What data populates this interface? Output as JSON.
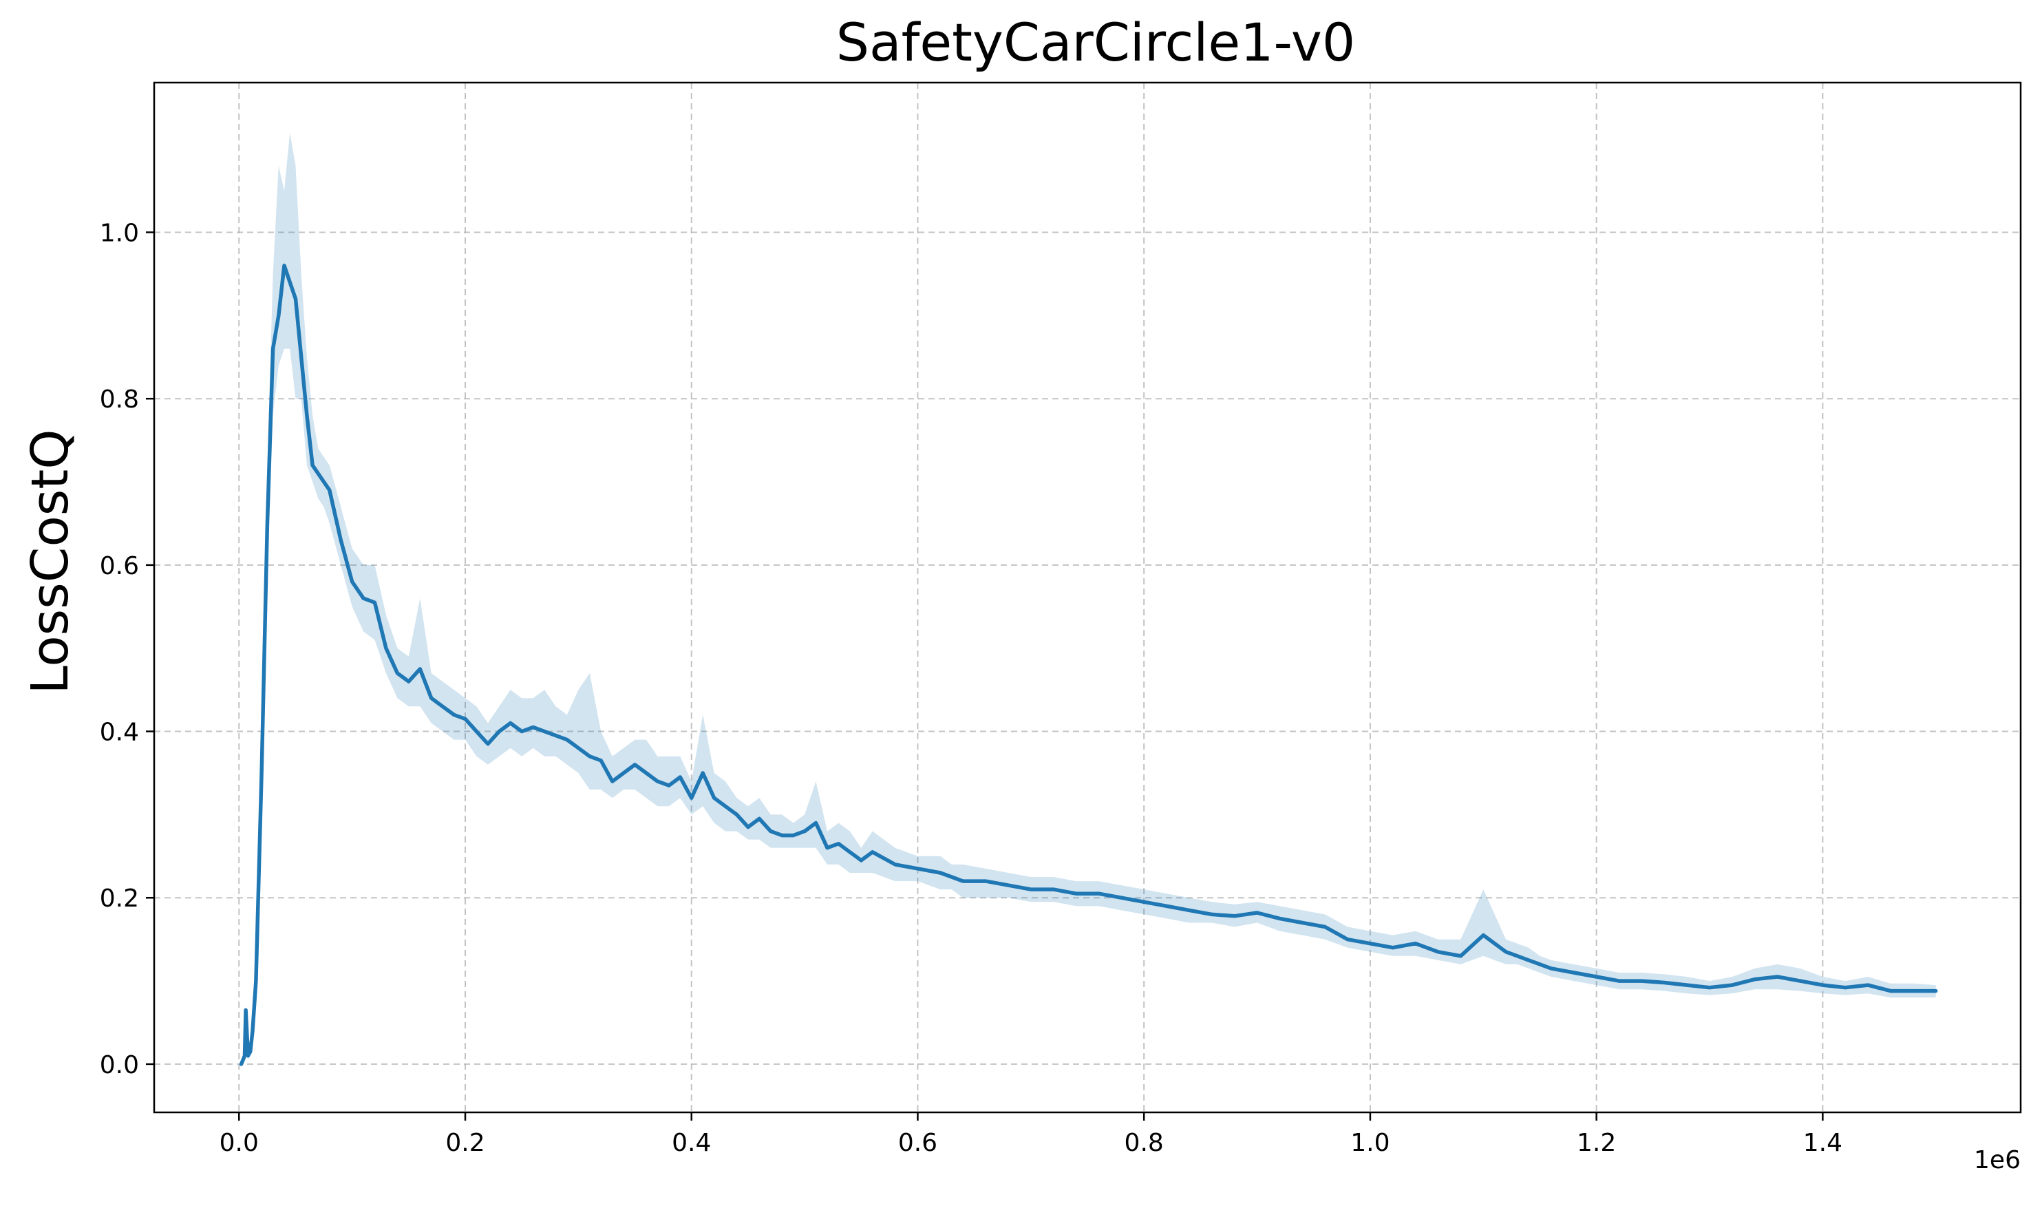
{
  "chart_data": {
    "type": "line",
    "title": "SafetyCarCircle1-v0",
    "xlabel": "",
    "ylabel": "LossCostQ",
    "x_offset_label": "1e6",
    "xlim": [
      -0.075,
      1.575
    ],
    "ylim": [
      -0.058,
      1.18
    ],
    "x_ticks": [
      0.0,
      0.2,
      0.4,
      0.6,
      0.8,
      1.0,
      1.2,
      1.4
    ],
    "x_tick_labels": [
      "0.0",
      "0.2",
      "0.4",
      "0.6",
      "0.8",
      "1.0",
      "1.2",
      "1.4"
    ],
    "y_ticks": [
      0.0,
      0.2,
      0.4,
      0.6,
      0.8,
      1.0
    ],
    "y_tick_labels": [
      "0.0",
      "0.2",
      "0.4",
      "0.6",
      "0.8",
      "1.0"
    ],
    "grid": true,
    "colors": {
      "line": "#1f77b4",
      "band": "#1f77b4",
      "band_opacity": 0.2
    },
    "series": [
      {
        "x": [
          0.002,
          0.005,
          0.006,
          0.008,
          0.01,
          0.012,
          0.015,
          0.02,
          0.025,
          0.03,
          0.035,
          0.04,
          0.045,
          0.05,
          0.055,
          0.06,
          0.065,
          0.07,
          0.075,
          0.08,
          0.09,
          0.1,
          0.11,
          0.12,
          0.13,
          0.14,
          0.15,
          0.16,
          0.17,
          0.18,
          0.19,
          0.2,
          0.21,
          0.22,
          0.23,
          0.24,
          0.25,
          0.26,
          0.27,
          0.28,
          0.29,
          0.3,
          0.31,
          0.32,
          0.33,
          0.34,
          0.35,
          0.36,
          0.37,
          0.38,
          0.39,
          0.4,
          0.41,
          0.42,
          0.43,
          0.44,
          0.45,
          0.46,
          0.47,
          0.48,
          0.49,
          0.5,
          0.51,
          0.52,
          0.53,
          0.54,
          0.545,
          0.55,
          0.56,
          0.58,
          0.6,
          0.62,
          0.63,
          0.64,
          0.66,
          0.68,
          0.7,
          0.72,
          0.74,
          0.76,
          0.78,
          0.8,
          0.82,
          0.84,
          0.86,
          0.88,
          0.9,
          0.92,
          0.94,
          0.96,
          0.98,
          1.0,
          1.02,
          1.04,
          1.06,
          1.08,
          1.1,
          1.12,
          1.13,
          1.14,
          1.15,
          1.16,
          1.18,
          1.2,
          1.22,
          1.24,
          1.26,
          1.28,
          1.3,
          1.32,
          1.34,
          1.36,
          1.38,
          1.4,
          1.42,
          1.44,
          1.46,
          1.48,
          1.5
        ],
        "y": [
          0.0,
          0.01,
          0.065,
          0.01,
          0.015,
          0.04,
          0.1,
          0.35,
          0.65,
          0.86,
          0.9,
          0.96,
          0.94,
          0.92,
          0.85,
          0.78,
          0.72,
          0.71,
          0.7,
          0.69,
          0.63,
          0.58,
          0.56,
          0.555,
          0.5,
          0.47,
          0.46,
          0.475,
          0.44,
          0.43,
          0.42,
          0.415,
          0.4,
          0.385,
          0.4,
          0.41,
          0.4,
          0.405,
          0.4,
          0.395,
          0.39,
          0.38,
          0.37,
          0.365,
          0.34,
          0.35,
          0.36,
          0.35,
          0.34,
          0.335,
          0.345,
          0.32,
          0.35,
          0.32,
          0.31,
          0.3,
          0.285,
          0.295,
          0.28,
          0.275,
          0.275,
          0.28,
          0.29,
          0.26,
          0.265,
          0.255,
          0.25,
          0.245,
          0.255,
          0.24,
          0.235,
          0.23,
          0.225,
          0.22,
          0.22,
          0.215,
          0.21,
          0.21,
          0.205,
          0.205,
          0.2,
          0.195,
          0.19,
          0.185,
          0.18,
          0.178,
          0.182,
          0.175,
          0.17,
          0.165,
          0.15,
          0.145,
          0.14,
          0.145,
          0.135,
          0.13,
          0.155,
          0.135,
          0.13,
          0.125,
          0.12,
          0.115,
          0.11,
          0.105,
          0.1,
          0.1,
          0.098,
          0.095,
          0.092,
          0.095,
          0.102,
          0.105,
          0.1,
          0.095,
          0.092,
          0.095,
          0.088,
          0.088,
          0.088
        ],
        "lower": [
          0.0,
          0.005,
          0.03,
          0.005,
          0.01,
          0.03,
          0.08,
          0.3,
          0.58,
          0.78,
          0.84,
          0.86,
          0.86,
          0.8,
          0.8,
          0.72,
          0.7,
          0.68,
          0.67,
          0.65,
          0.6,
          0.55,
          0.52,
          0.51,
          0.47,
          0.44,
          0.43,
          0.43,
          0.41,
          0.4,
          0.39,
          0.39,
          0.37,
          0.36,
          0.37,
          0.38,
          0.37,
          0.38,
          0.37,
          0.37,
          0.36,
          0.35,
          0.33,
          0.33,
          0.32,
          0.33,
          0.33,
          0.32,
          0.31,
          0.31,
          0.32,
          0.3,
          0.31,
          0.29,
          0.28,
          0.28,
          0.27,
          0.27,
          0.26,
          0.26,
          0.26,
          0.26,
          0.26,
          0.24,
          0.24,
          0.23,
          0.23,
          0.23,
          0.23,
          0.22,
          0.22,
          0.21,
          0.21,
          0.2,
          0.2,
          0.2,
          0.195,
          0.195,
          0.19,
          0.19,
          0.185,
          0.18,
          0.175,
          0.17,
          0.17,
          0.165,
          0.17,
          0.16,
          0.155,
          0.15,
          0.14,
          0.135,
          0.13,
          0.13,
          0.125,
          0.12,
          0.13,
          0.12,
          0.12,
          0.115,
          0.11,
          0.105,
          0.1,
          0.095,
          0.09,
          0.09,
          0.088,
          0.085,
          0.083,
          0.085,
          0.09,
          0.09,
          0.088,
          0.085,
          0.083,
          0.085,
          0.08,
          0.08,
          0.08
        ],
        "upper": [
          0.0,
          0.02,
          0.07,
          0.02,
          0.025,
          0.06,
          0.12,
          0.4,
          0.72,
          0.95,
          1.08,
          1.05,
          1.12,
          1.08,
          0.95,
          0.85,
          0.78,
          0.74,
          0.73,
          0.72,
          0.67,
          0.62,
          0.6,
          0.6,
          0.54,
          0.5,
          0.49,
          0.56,
          0.47,
          0.46,
          0.45,
          0.44,
          0.43,
          0.41,
          0.43,
          0.45,
          0.44,
          0.44,
          0.45,
          0.43,
          0.42,
          0.45,
          0.47,
          0.4,
          0.37,
          0.38,
          0.39,
          0.39,
          0.37,
          0.37,
          0.37,
          0.34,
          0.42,
          0.35,
          0.34,
          0.32,
          0.31,
          0.32,
          0.3,
          0.3,
          0.29,
          0.3,
          0.34,
          0.28,
          0.29,
          0.28,
          0.27,
          0.26,
          0.28,
          0.26,
          0.25,
          0.25,
          0.24,
          0.24,
          0.235,
          0.23,
          0.225,
          0.225,
          0.22,
          0.22,
          0.215,
          0.21,
          0.205,
          0.2,
          0.195,
          0.192,
          0.195,
          0.19,
          0.185,
          0.18,
          0.165,
          0.16,
          0.155,
          0.16,
          0.15,
          0.15,
          0.21,
          0.15,
          0.145,
          0.14,
          0.13,
          0.125,
          0.12,
          0.115,
          0.11,
          0.11,
          0.108,
          0.105,
          0.1,
          0.105,
          0.115,
          0.12,
          0.115,
          0.105,
          0.1,
          0.105,
          0.097,
          0.097,
          0.095
        ]
      }
    ]
  }
}
